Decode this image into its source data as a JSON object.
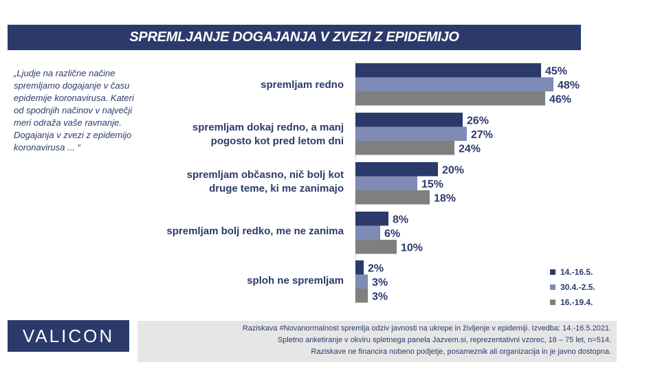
{
  "title": "SPREMLJANJE DOGAJANJA V ZVEZI Z EPIDEMIJO",
  "question": "„Ljudje na različne načine spremljamo dogajanje v času epidemije koronavirusa.  Kateri od spodnjih načinov v največji meri odraža vaše ravnanje. Dogajanja v zvezi z epidemijo koronavirusa ... “",
  "logo": "VALICON",
  "footer": {
    "line1": "Raziskava #Novanormalnost spremlja odziv javnosti na ukrepe in življenje v epidemiji. Izvedba: 14.-16.5.2021.",
    "line2": "Spletno anketiranje v okviru spletnega panela Jazvem.si, reprezentativni vzorec, 18 – 75 let, n=514.",
    "line3": "Raziskave ne financira nobeno podjetje, posameznik ali organizacija in je javno dostopna."
  },
  "colors": {
    "brand": "#2b3a6b",
    "series1": "#2b3a6b",
    "series2": "#7f8bb5",
    "series3": "#7f7f7f"
  },
  "chart_data": {
    "type": "bar",
    "orientation": "horizontal",
    "categories": [
      "spremljam redno",
      "spremljam dokaj redno, a manj pogosto kot pred letom dni",
      "spremljam občasno, nič bolj kot druge teme, ki me zanimajo",
      "spremljam bolj redko, me ne zanima",
      "sploh ne spremljam"
    ],
    "series": [
      {
        "name": "14.-16.5.",
        "values": [
          45,
          26,
          20,
          8,
          2
        ],
        "labels": [
          "45%",
          "26%",
          "20%",
          "8%",
          "2%"
        ]
      },
      {
        "name": "30.4.-2.5.",
        "values": [
          48,
          27,
          15,
          6,
          3
        ],
        "labels": [
          "48%",
          "27%",
          "15%",
          "6%",
          "3%"
        ]
      },
      {
        "name": "16.-19.4.",
        "values": [
          46,
          24,
          18,
          10,
          3
        ],
        "labels": [
          "46%",
          "24%",
          "18%",
          "10%",
          "3%"
        ]
      }
    ],
    "unit": "%",
    "legend_position": "bottom-right",
    "grid": false
  }
}
